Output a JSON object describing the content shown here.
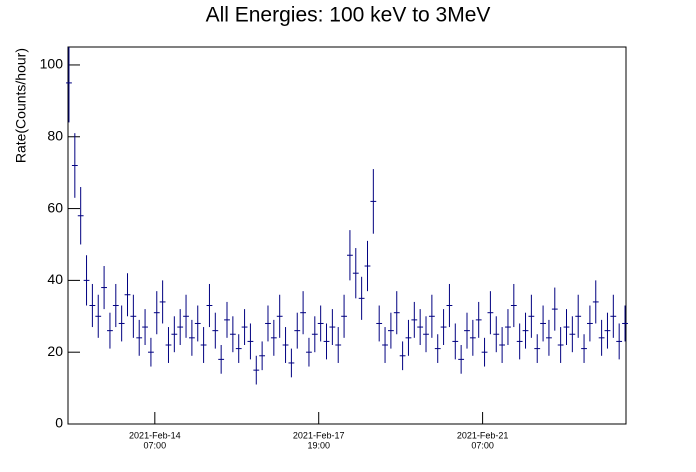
{
  "chart_data": {
    "type": "errorbar",
    "title": "All Energies:  100 keV to 3MeV",
    "y_label": "Rate(Counts/hour)",
    "color": "#000080",
    "x": [
      "2021-02-12T11:00",
      "2021-02-12T14:00",
      "2021-02-12T17:00",
      "2021-02-12T20:00",
      "2021-02-12T23:00",
      "2021-02-13T02:00",
      "2021-02-13T05:00",
      "2021-02-13T08:00",
      "2021-02-13T11:00",
      "2021-02-13T14:00",
      "2021-02-13T17:00",
      "2021-02-13T20:00",
      "2021-02-13T23:00",
      "2021-02-14T02:00",
      "2021-02-14T05:00",
      "2021-02-14T08:00",
      "2021-02-14T11:00",
      "2021-02-14T14:00",
      "2021-02-14T17:00",
      "2021-02-14T20:00",
      "2021-02-14T23:00",
      "2021-02-15T02:00",
      "2021-02-15T05:00",
      "2021-02-15T08:00",
      "2021-02-15T11:00",
      "2021-02-15T14:00",
      "2021-02-15T17:00",
      "2021-02-15T20:00",
      "2021-02-15T23:00",
      "2021-02-16T02:00",
      "2021-02-16T05:00",
      "2021-02-16T08:00",
      "2021-02-16T11:00",
      "2021-02-16T14:00",
      "2021-02-16T17:00",
      "2021-02-16T20:00",
      "2021-02-16T23:00",
      "2021-02-17T02:00",
      "2021-02-17T05:00",
      "2021-02-17T08:00",
      "2021-02-17T11:00",
      "2021-02-17T14:00",
      "2021-02-17T17:00",
      "2021-02-17T20:00",
      "2021-02-17T23:00",
      "2021-02-18T02:00",
      "2021-02-18T05:00",
      "2021-02-18T08:00",
      "2021-02-18T11:00",
      "2021-02-18T14:00",
      "2021-02-18T17:00",
      "2021-02-18T20:00",
      "2021-02-18T23:00",
      "2021-02-19T02:00",
      "2021-02-19T05:00",
      "2021-02-19T08:00",
      "2021-02-19T11:00",
      "2021-02-19T14:00",
      "2021-02-19T17:00",
      "2021-02-19T20:00",
      "2021-02-19T23:00",
      "2021-02-20T02:00",
      "2021-02-20T05:00",
      "2021-02-20T08:00",
      "2021-02-20T11:00",
      "2021-02-20T14:00",
      "2021-02-20T17:00",
      "2021-02-20T20:00",
      "2021-02-20T23:00",
      "2021-02-21T02:00",
      "2021-02-21T05:00",
      "2021-02-21T08:00",
      "2021-02-21T11:00",
      "2021-02-21T14:00",
      "2021-02-21T17:00",
      "2021-02-21T20:00",
      "2021-02-21T23:00",
      "2021-02-22T02:00",
      "2021-02-22T05:00",
      "2021-02-22T08:00",
      "2021-02-22T11:00",
      "2021-02-22T14:00",
      "2021-02-22T17:00",
      "2021-02-22T20:00",
      "2021-02-22T23:00",
      "2021-02-23T02:00",
      "2021-02-23T05:00",
      "2021-02-23T08:00",
      "2021-02-23T11:00",
      "2021-02-23T14:00",
      "2021-02-23T17:00",
      "2021-02-23T20:00",
      "2021-02-23T23:00",
      "2021-02-24T02:00",
      "2021-02-24T05:00",
      "2021-02-24T08:00"
    ],
    "values": [
      95,
      72,
      58,
      40,
      33,
      30,
      38,
      26,
      33,
      28,
      36,
      30,
      24,
      27,
      20,
      31,
      34,
      22,
      25,
      27,
      30,
      24,
      28,
      22,
      33,
      26,
      18,
      29,
      25,
      21,
      27,
      23,
      15,
      19,
      28,
      24,
      30,
      22,
      17,
      26,
      31,
      20,
      25,
      28,
      23,
      27,
      22,
      30,
      47,
      42,
      35,
      44,
      62,
      28,
      22,
      26,
      31,
      19,
      24,
      29,
      27,
      25,
      30,
      21,
      27,
      33,
      23,
      18,
      26,
      24,
      29,
      20,
      31,
      25,
      22,
      27,
      33,
      23,
      26,
      30,
      21,
      28,
      24,
      32,
      22,
      27,
      25,
      30,
      21,
      28,
      34,
      24,
      26,
      30,
      23,
      28
    ],
    "errors": [
      11,
      9,
      8,
      7,
      6,
      6,
      6,
      5,
      6,
      5,
      6,
      6,
      5,
      5,
      4,
      6,
      6,
      5,
      5,
      5,
      6,
      5,
      5,
      5,
      6,
      5,
      4,
      5,
      5,
      4,
      5,
      5,
      4,
      4,
      5,
      5,
      6,
      5,
      4,
      5,
      6,
      4,
      5,
      5,
      5,
      5,
      5,
      6,
      7,
      7,
      6,
      7,
      9,
      5,
      5,
      5,
      6,
      4,
      5,
      5,
      5,
      5,
      6,
      4,
      5,
      6,
      5,
      4,
      5,
      5,
      5,
      4,
      6,
      5,
      5,
      5,
      6,
      5,
      5,
      6,
      4,
      5,
      5,
      6,
      5,
      5,
      5,
      6,
      4,
      5,
      6,
      5,
      5,
      6,
      5,
      5
    ],
    "xlim": [
      "2021-02-12T10:30",
      "2021-02-24T08:30"
    ],
    "xticks": [
      {
        "value": "2021-02-14T07:00",
        "label": [
          "2021-Feb-14",
          "07:00"
        ]
      },
      {
        "value": "2021-02-17T19:00",
        "label": [
          "2021-Feb-17",
          "19:00"
        ]
      },
      {
        "value": "2021-02-21T07:00",
        "label": [
          "2021-Feb-21",
          "07:00"
        ]
      }
    ],
    "ylim": [
      0,
      105
    ],
    "yticks": [
      0,
      20,
      40,
      60,
      80,
      100
    ]
  }
}
